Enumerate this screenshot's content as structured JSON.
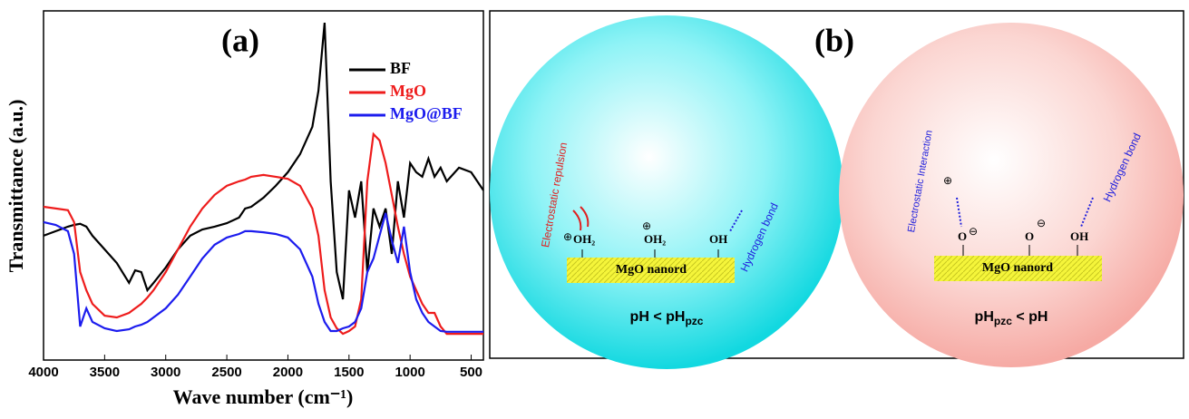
{
  "chart_data": {
    "type": "line",
    "panel_label": "(a)",
    "xlabel": "Wave number (cm⁻¹)",
    "ylabel": "Transmittance (a.u.)",
    "x": [
      4000,
      3900,
      3800,
      3750,
      3700,
      3650,
      3600,
      3500,
      3400,
      3300,
      3250,
      3200,
      3150,
      3100,
      3000,
      2900,
      2800,
      2700,
      2600,
      2500,
      2400,
      2350,
      2300,
      2200,
      2100,
      2000,
      1900,
      1800,
      1750,
      1700,
      1650,
      1600,
      1550,
      1500,
      1450,
      1400,
      1350,
      1300,
      1250,
      1200,
      1150,
      1100,
      1050,
      1000,
      950,
      900,
      850,
      800,
      750,
      700,
      600,
      500,
      400
    ],
    "series": [
      {
        "name": "BF",
        "color": "#000000",
        "values": [
          35.6,
          36.9,
          38.2,
          38.7,
          39.0,
          38.2,
          35.6,
          31.7,
          27.8,
          22.1,
          25.7,
          25.2,
          20.0,
          22.1,
          26.5,
          31.7,
          35.6,
          37.4,
          38.2,
          39.2,
          40.8,
          43.4,
          43.9,
          46.5,
          49.9,
          53.8,
          59.0,
          66.8,
          77.1,
          96.6,
          51.2,
          25.2,
          17.4,
          48.6,
          40.8,
          51.2,
          25.2,
          43.4,
          38.2,
          43.4,
          30.4,
          51.2,
          40.8,
          56.4,
          53.8,
          52.5,
          57.7,
          52.5,
          55.1,
          51.2,
          55.1,
          53.8,
          48.6
        ]
      },
      {
        "name": "MgO",
        "color": "#ee1c1c",
        "values": [
          43.9,
          43.4,
          42.9,
          39.5,
          25.2,
          20.0,
          16.1,
          12.7,
          12.2,
          13.5,
          14.8,
          16.1,
          17.9,
          20.0,
          25.2,
          31.7,
          38.2,
          43.4,
          47.3,
          49.9,
          51.2,
          51.7,
          52.5,
          53.0,
          52.5,
          51.9,
          49.9,
          43.4,
          35.6,
          20.0,
          12.2,
          9.1,
          7.5,
          8.3,
          9.6,
          17.4,
          51.2,
          64.7,
          62.9,
          56.4,
          47.3,
          38.2,
          30.4,
          23.9,
          20.0,
          16.1,
          13.5,
          13.5,
          9.6,
          7.5,
          7.5,
          7.5,
          7.5
        ]
      },
      {
        "name": "MgO@BF",
        "color": "#1c1cee",
        "values": [
          39.5,
          38.7,
          36.9,
          30.4,
          9.6,
          14.8,
          10.9,
          9.1,
          8.3,
          8.8,
          9.6,
          10.1,
          10.9,
          12.2,
          14.8,
          18.7,
          23.9,
          29.1,
          33.0,
          35.1,
          36.1,
          36.9,
          36.9,
          36.6,
          36.1,
          35.1,
          31.7,
          23.9,
          16.1,
          10.9,
          8.3,
          8.3,
          9.1,
          9.6,
          10.9,
          14.8,
          25.2,
          29.1,
          35.6,
          42.1,
          34.3,
          27.8,
          38.2,
          25.2,
          17.4,
          13.5,
          10.9,
          9.6,
          8.3,
          8.1,
          8.1,
          8.1,
          8.1
        ]
      }
    ],
    "xlim": [
      4000,
      400
    ],
    "ylim": [
      0,
      100
    ],
    "xticks": [
      4000,
      3500,
      3000,
      2500,
      2000,
      1500,
      1000,
      500
    ]
  },
  "diagram": {
    "panel_label": "(b)",
    "left": {
      "repulsion": "Electrostatic repulsion",
      "oh2_a": "OH₂",
      "oh2_b": "OH₂",
      "oh": "OH",
      "rod": "MgO nanord",
      "hbond": "Hydrogen bond",
      "cond": {
        "main": "pH < pH",
        "sub": "pzc"
      }
    },
    "right": {
      "interaction": "Electrostatic Interaction",
      "o_a": "O",
      "o_b": "O",
      "oh": "OH",
      "rod": "MgO nanord",
      "hbond": "Hydrogen bond",
      "cond": {
        "main": "pH",
        "sub": "pzc",
        "tail": " < pH"
      }
    }
  }
}
